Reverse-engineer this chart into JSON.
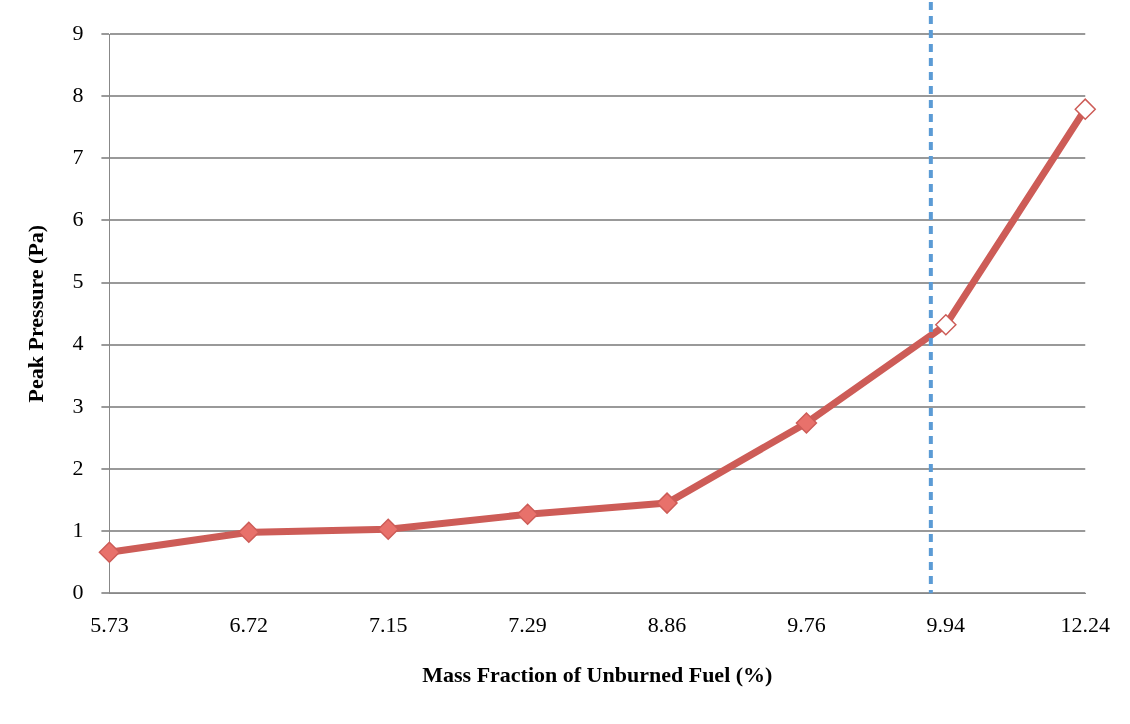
{
  "chart_data": {
    "type": "line",
    "xlabel": "Mass Fraction of Unburned Fuel (%)",
    "ylabel": "Peak Pressure (Pa)",
    "categories": [
      "5.73",
      "6.72",
      "7.15",
      "7.29",
      "8.86",
      "9.76",
      "9.94",
      "12.24"
    ],
    "series": [
      {
        "color": "#cd5c57",
        "colors": [
          "#e8716b",
          "#e8716b",
          "#e8716b",
          "#e8716b",
          "#e8716b",
          "#e8716b",
          "#ffffff",
          "#ffffff"
        ],
        "values": [
          0.66,
          0.98,
          1.03,
          1.27,
          1.45,
          2.74,
          4.32,
          7.79
        ]
      }
    ],
    "ylim": [
      0,
      9
    ],
    "yticks": [
      0,
      1,
      2,
      3,
      4,
      5,
      6,
      7,
      8,
      9
    ],
    "grid": "y",
    "marker": "diamond",
    "line_style": "solid",
    "ref_lines": [
      {
        "axis": "x",
        "value": "9.94",
        "color": "#5b9bd5",
        "line_style": "dashed"
      }
    ]
  }
}
